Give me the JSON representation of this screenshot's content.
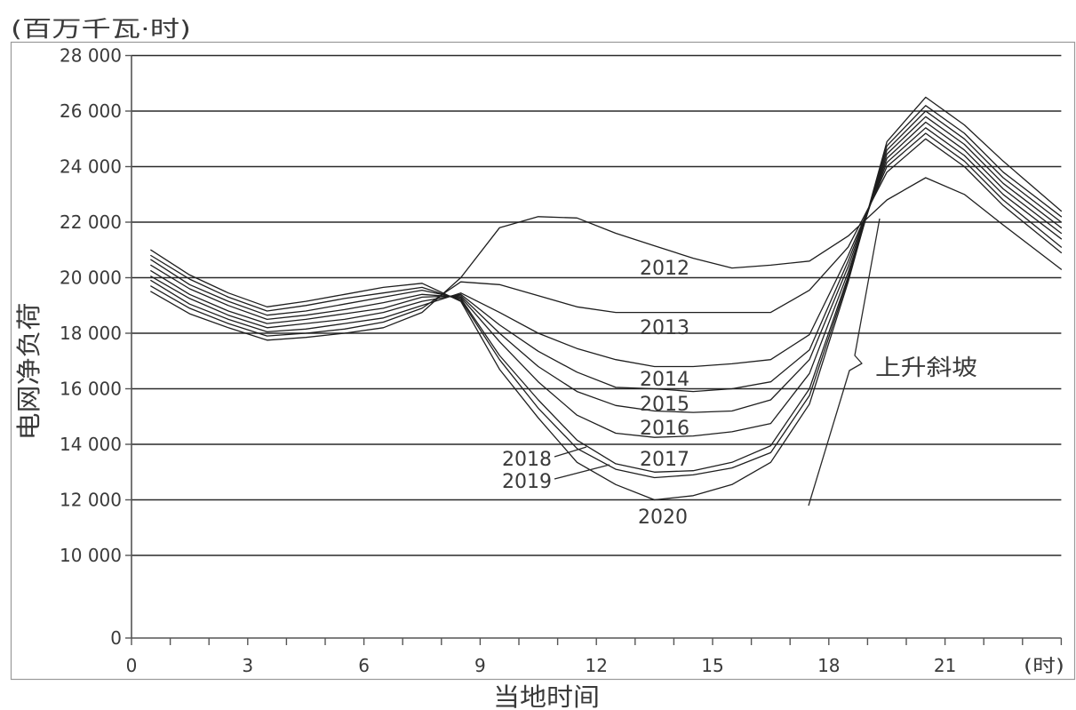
{
  "chart_data": {
    "type": "line",
    "y_unit_label": "(百万千瓦·时)",
    "ylabel": "电网净负荷",
    "xlabel": "当地时间",
    "x_unit_label": "(时)",
    "xlim": [
      0,
      24
    ],
    "ylim": [
      0,
      28000
    ],
    "y_axis_compressed_below": 10000,
    "x_ticks": [
      0,
      3,
      6,
      9,
      12,
      15,
      18,
      21
    ],
    "x_tick_labels": [
      "0",
      "3",
      "6",
      "9",
      "12",
      "15",
      "18",
      "21"
    ],
    "x_minor_tick_step": 1,
    "y_ticks": [
      0,
      10000,
      12000,
      14000,
      16000,
      18000,
      20000,
      22000,
      24000,
      26000,
      28000
    ],
    "y_tick_labels": [
      "0",
      "10 000",
      "12 000",
      "14 000",
      "16 000",
      "18 000",
      "20 000",
      "22 000",
      "24 000",
      "26 000",
      "28 000"
    ],
    "grid": {
      "horizontal": true,
      "vertical": false
    },
    "legend": "inline",
    "colors": {
      "lines": "#1e1e1e",
      "grid": "#2a2a2a"
    },
    "x": [
      0.5,
      1.5,
      2.5,
      3.5,
      4.5,
      5.5,
      6.5,
      7.5,
      8.5,
      9.5,
      10.5,
      11.5,
      12.5,
      13.5,
      14.5,
      15.5,
      16.5,
      17.5,
      18.5,
      19.5,
      20.5,
      21.5,
      22.5,
      24
    ],
    "series": [
      {
        "name": "2012",
        "values": [
          19500,
          18700,
          18200,
          17750,
          17850,
          18000,
          18200,
          18750,
          20000,
          21800,
          22200,
          22150,
          21600,
          21150,
          20700,
          20350,
          20450,
          20600,
          21500,
          22800,
          23600,
          23000,
          21900,
          20300
        ]
      },
      {
        "name": "2013",
        "values": [
          19700,
          18900,
          18350,
          17900,
          18000,
          18150,
          18400,
          18900,
          19850,
          19750,
          19350,
          18950,
          18750,
          18750,
          18750,
          18750,
          18750,
          19550,
          21100,
          23800,
          25000,
          24000,
          22600,
          20900
        ]
      },
      {
        "name": "2014",
        "values": [
          19900,
          19050,
          18500,
          18050,
          18150,
          18350,
          18550,
          19000,
          19450,
          18750,
          18000,
          17450,
          17050,
          16800,
          16800,
          16900,
          17050,
          17950,
          20800,
          24000,
          25200,
          24200,
          22800,
          21100
        ]
      },
      {
        "name": "2015",
        "values": [
          20050,
          19250,
          18650,
          18200,
          18350,
          18500,
          18750,
          19150,
          19400,
          18300,
          17350,
          16600,
          16050,
          16000,
          15900,
          16000,
          16250,
          17400,
          20600,
          24150,
          25400,
          24400,
          23000,
          21400
        ]
      },
      {
        "name": "2016",
        "values": [
          20250,
          19400,
          18800,
          18350,
          18500,
          18700,
          18900,
          19300,
          19350,
          18000,
          16800,
          15900,
          15400,
          15200,
          15150,
          15200,
          15600,
          17050,
          20400,
          24300,
          25600,
          24600,
          23200,
          21600
        ]
      },
      {
        "name": "2017",
        "values": [
          20450,
          19600,
          19000,
          18500,
          18650,
          18850,
          19100,
          19400,
          19300,
          17700,
          16250,
          15050,
          14400,
          14250,
          14300,
          14450,
          14750,
          16550,
          20200,
          24450,
          25800,
          24800,
          23400,
          21800
        ]
      },
      {
        "name": "2018",
        "values": [
          20650,
          19750,
          19150,
          18650,
          18800,
          19050,
          19300,
          19550,
          19250,
          17200,
          15600,
          14150,
          13300,
          13000,
          13050,
          13350,
          13950,
          16000,
          20050,
          24600,
          26000,
          25000,
          23600,
          22000
        ]
      },
      {
        "name": "2019",
        "values": [
          20800,
          19950,
          19300,
          18800,
          19000,
          19250,
          19450,
          19650,
          19200,
          17050,
          15300,
          13850,
          13100,
          12800,
          12900,
          13150,
          13700,
          15750,
          19950,
          24750,
          26200,
          25200,
          23800,
          22200
        ]
      },
      {
        "name": "2020",
        "values": [
          21000,
          20100,
          19450,
          18950,
          19150,
          19400,
          19650,
          19800,
          19150,
          16700,
          14950,
          13350,
          12550,
          12000,
          12150,
          12550,
          13350,
          15450,
          19850,
          24900,
          26500,
          25500,
          24200,
          22400
        ]
      }
    ],
    "annotation": {
      "text": "上升斜坡"
    }
  }
}
